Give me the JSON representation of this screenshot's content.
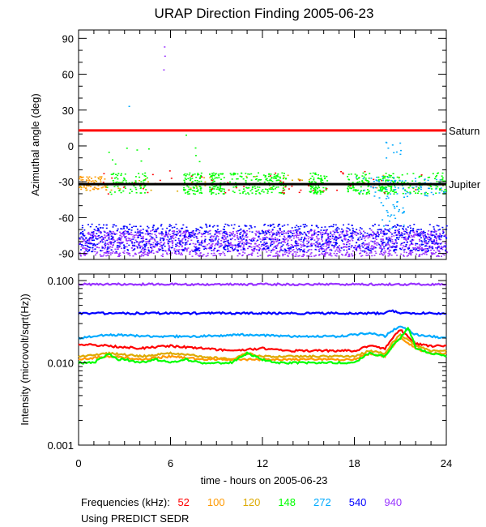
{
  "chart_data": [
    {
      "type": "scatter",
      "title": "URAP Direction Finding  2005-06-23",
      "ylabel": "Azimuthal angle (deg)",
      "xlabel": "",
      "xlim": [
        0,
        24
      ],
      "ylim": [
        -95,
        97
      ],
      "yticks": [
        90,
        60,
        30,
        0,
        -30,
        -60,
        -90
      ],
      "yticklabels": [
        "90",
        "60",
        "30",
        "0",
        "-30",
        "-60",
        "-90"
      ],
      "xticks": [
        0,
        6,
        12,
        18,
        24
      ],
      "reference_lines": [
        {
          "name": "Saturn",
          "value": 13,
          "color": "#ff0000"
        },
        {
          "name": "Jupiter",
          "value": -32,
          "color": "#000000"
        }
      ],
      "series": [
        {
          "name": "52 kHz",
          "color": "#ff0000",
          "pattern": "sparse points around -30 deg"
        },
        {
          "name": "100 kHz",
          "color": "#ff9900",
          "pattern": "cluster near -30 deg, 0-3 h"
        },
        {
          "name": "120 kHz",
          "color": "#ddaa00",
          "pattern": "cluster near -30 deg"
        },
        {
          "name": "148 kHz",
          "color": "#00ff00",
          "pattern": "clusters near -30 deg throughout day"
        },
        {
          "name": "272 kHz",
          "color": "#00aaff",
          "pattern": "near -30 deg, 18-24 h, with scatter"
        },
        {
          "name": "540 kHz",
          "color": "#0000ff",
          "pattern": "dense band -65 to -90 deg"
        },
        {
          "name": "940 kHz",
          "color": "#9933ff",
          "pattern": "dense band -70 to -90 deg"
        }
      ]
    },
    {
      "type": "line",
      "ylabel": "Intensity (microvolt/sqrt(Hz))",
      "xlabel": "time - hours on 2005-06-23",
      "yscale": "log",
      "xlim": [
        0,
        24
      ],
      "ylim": [
        0.001,
        0.12
      ],
      "yticks": [
        0.1,
        0.01,
        0.001
      ],
      "yticklabels": [
        "0.100",
        "0.010",
        "0.001"
      ],
      "xticks": [
        0,
        6,
        12,
        18,
        24
      ],
      "xticklabels": [
        "0",
        "6",
        "12",
        "18",
        "24"
      ],
      "series": [
        {
          "name": "940",
          "color": "#9933ff",
          "x": [
            0,
            24
          ],
          "values": [
            0.09,
            0.09
          ]
        },
        {
          "name": "540",
          "color": "#0000ff",
          "x": [
            0,
            20,
            20.5,
            21,
            24
          ],
          "values": [
            0.04,
            0.04,
            0.043,
            0.04,
            0.04
          ]
        },
        {
          "name": "272",
          "color": "#00aaff",
          "x": [
            0,
            2,
            5,
            8,
            11,
            14,
            17,
            19,
            20,
            21,
            22,
            23,
            24
          ],
          "values": [
            0.02,
            0.022,
            0.021,
            0.021,
            0.022,
            0.021,
            0.021,
            0.023,
            0.021,
            0.028,
            0.022,
            0.021,
            0.02
          ]
        },
        {
          "name": "52",
          "color": "#ff0000",
          "x": [
            0,
            2,
            4,
            6,
            8,
            10,
            12,
            14,
            16,
            18,
            19,
            20,
            21,
            22,
            23,
            24
          ],
          "values": [
            0.017,
            0.016,
            0.015,
            0.016,
            0.015,
            0.014,
            0.015,
            0.014,
            0.014,
            0.014,
            0.016,
            0.015,
            0.025,
            0.017,
            0.016,
            0.016
          ]
        },
        {
          "name": "120",
          "color": "#ddaa00",
          "x": [
            0,
            2,
            4,
            6,
            8,
            10,
            11,
            12,
            14,
            16,
            18,
            19,
            20,
            21,
            22,
            23,
            24
          ],
          "values": [
            0.012,
            0.013,
            0.012,
            0.013,
            0.012,
            0.011,
            0.013,
            0.012,
            0.012,
            0.012,
            0.012,
            0.014,
            0.013,
            0.022,
            0.016,
            0.014,
            0.014
          ]
        },
        {
          "name": "100",
          "color": "#ff9900",
          "x": [
            0,
            2,
            4,
            6,
            8,
            10,
            12,
            14,
            16,
            18,
            19,
            20,
            21,
            22,
            23,
            24
          ],
          "values": [
            0.011,
            0.012,
            0.011,
            0.012,
            0.011,
            0.011,
            0.011,
            0.011,
            0.011,
            0.011,
            0.013,
            0.012,
            0.02,
            0.015,
            0.013,
            0.013
          ]
        },
        {
          "name": "148",
          "color": "#00ff00",
          "x": [
            0,
            1,
            2,
            2.5,
            3,
            4,
            5,
            6,
            7,
            8,
            9,
            10,
            11,
            12,
            13,
            14,
            15,
            16,
            17,
            18,
            19,
            20,
            21,
            21.5,
            22,
            23,
            24
          ],
          "values": [
            0.01,
            0.01,
            0.013,
            0.011,
            0.011,
            0.01,
            0.011,
            0.01,
            0.011,
            0.01,
            0.01,
            0.01,
            0.013,
            0.011,
            0.01,
            0.01,
            0.01,
            0.01,
            0.01,
            0.01,
            0.013,
            0.012,
            0.02,
            0.026,
            0.015,
            0.013,
            0.012
          ]
        }
      ]
    }
  ],
  "legend": {
    "label": "Frequencies (kHz):",
    "items": [
      {
        "value": "52",
        "color": "#ff0000"
      },
      {
        "value": "100",
        "color": "#ff9900"
      },
      {
        "value": "120",
        "color": "#ddaa00"
      },
      {
        "value": "148",
        "color": "#00ff00"
      },
      {
        "value": "272",
        "color": "#00aaff"
      },
      {
        "value": "540",
        "color": "#0000ff"
      },
      {
        "value": "940",
        "color": "#9933ff"
      }
    ]
  },
  "source_note": "Using PREDICT SEDR"
}
